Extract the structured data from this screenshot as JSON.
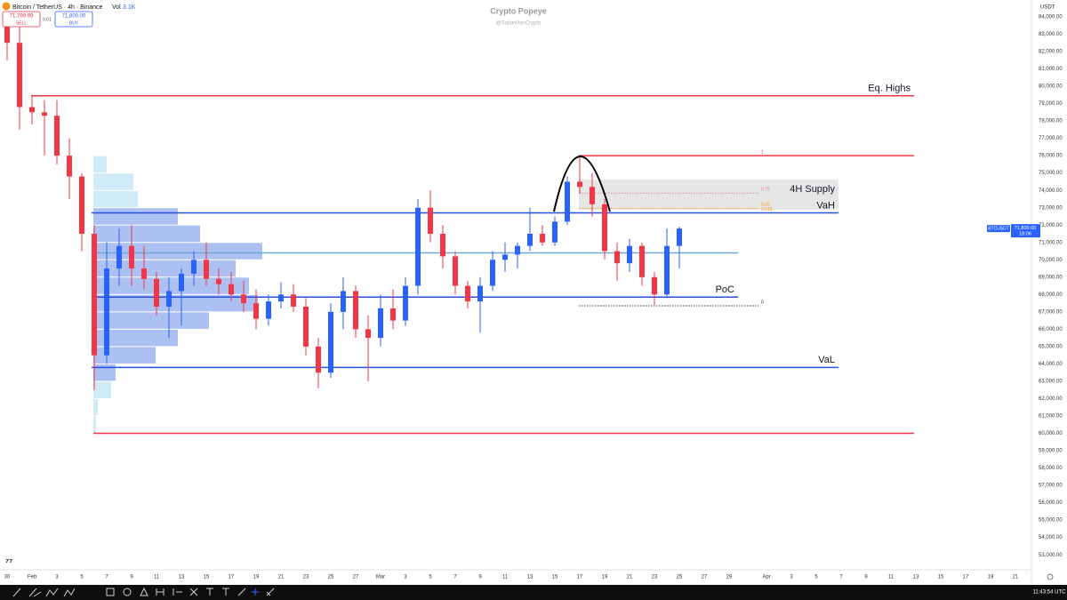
{
  "header": {
    "symbol": "Bitcoin / TetherUS · 4h · Binance",
    "vol_label": "Vol",
    "vol": "3.1K",
    "sell_price": "71,799.99",
    "sell": "SELL",
    "spread": "0.01",
    "buy_price": "71,800.00",
    "buy": "BUY"
  },
  "watermark": {
    "title": "Crypto Popeye",
    "handle": "@SailorManCrypto"
  },
  "price_axis_currency": "USDT",
  "clock": "11:43:54 UTC",
  "chart_data": {
    "type": "candlestick",
    "categories": [
      "30",
      null,
      "Feb",
      null,
      "3",
      null,
      "5",
      null,
      "7",
      null,
      "9",
      null,
      "11",
      null,
      "13",
      null,
      "15",
      null,
      "17",
      null,
      "19",
      null,
      "21",
      null,
      "23",
      null,
      "25",
      null,
      "27",
      null,
      "Mar",
      null,
      "3",
      null,
      "5",
      null,
      "7",
      null,
      "9",
      null,
      "11",
      null,
      "13",
      null,
      "15",
      null,
      "17",
      null,
      "19",
      null,
      "21",
      null,
      "23",
      null,
      "25",
      null,
      "27",
      null,
      "29",
      null,
      null,
      "Apr",
      null,
      "3",
      null,
      "5",
      null,
      "7",
      null,
      "9",
      null,
      "11",
      null,
      "13",
      null,
      "15",
      null,
      "17",
      null,
      "19",
      null,
      "21"
    ],
    "open": [
      83500,
      82500,
      78800,
      78500,
      78300,
      76000,
      74800,
      71500,
      64500,
      69500,
      70800,
      69500,
      68900,
      67300,
      68200,
      69200,
      70000,
      68900,
      68600,
      68000,
      67500,
      66600,
      67600,
      68000,
      67300,
      65000,
      63500,
      67000,
      68200,
      66000,
      65500,
      67200,
      66500,
      68500,
      73000,
      71500,
      70200,
      68500,
      67600,
      68500,
      70000,
      70300,
      70800,
      71500,
      71000,
      72200,
      74500,
      74200,
      73200,
      70500,
      69800,
      70800,
      69000,
      68000,
      70800,
      null,
      null,
      null,
      null,
      null,
      null,
      null,
      null,
      null,
      null,
      null,
      null,
      null,
      null,
      null,
      null,
      null,
      null,
      null,
      null,
      null,
      null,
      null,
      null,
      null,
      null,
      null
    ],
    "high": [
      84200,
      83500,
      79500,
      79200,
      79200,
      77000,
      75000,
      72000,
      71000,
      71800,
      72000,
      70800,
      69300,
      69000,
      69500,
      70500,
      71000,
      69500,
      69300,
      68800,
      68300,
      68000,
      68700,
      68600,
      67800,
      65500,
      67500,
      69000,
      68500,
      66800,
      68000,
      68300,
      69000,
      73500,
      74000,
      72000,
      70500,
      68800,
      69000,
      70500,
      71000,
      71000,
      73000,
      72000,
      72500,
      74800,
      76000,
      75000,
      73500,
      71000,
      71200,
      71000,
      69300,
      71800,
      71900,
      null,
      null,
      null,
      null,
      null,
      null,
      null,
      null,
      null,
      null,
      null,
      null,
      null,
      null,
      null,
      null,
      null,
      null,
      null,
      null,
      null,
      null,
      null,
      null,
      null,
      null,
      null
    ],
    "low": [
      81500,
      77500,
      77800,
      76000,
      75500,
      73500,
      70500,
      62500,
      64000,
      68500,
      68500,
      68300,
      66800,
      65500,
      66200,
      68500,
      68500,
      68000,
      67600,
      67000,
      66000,
      66200,
      67200,
      67000,
      64500,
      62600,
      63200,
      66000,
      65500,
      63000,
      65000,
      66000,
      66200,
      68000,
      71000,
      69500,
      68000,
      67200,
      65800,
      68200,
      69300,
      69500,
      70500,
      70800,
      70800,
      72000,
      73800,
      72500,
      70000,
      68800,
      69300,
      68500,
      67400,
      67800,
      69500,
      null,
      null,
      null,
      null,
      null,
      null,
      null,
      null,
      null,
      null,
      null,
      null,
      null,
      null,
      null,
      null,
      null,
      null,
      null,
      null,
      null,
      null,
      null,
      null,
      null,
      null,
      null
    ],
    "close": [
      82500,
      78800,
      78500,
      78300,
      76000,
      74800,
      71500,
      64500,
      69500,
      70800,
      69500,
      68900,
      67300,
      68200,
      69200,
      70000,
      68900,
      68600,
      68000,
      67500,
      66600,
      67600,
      68000,
      67300,
      65000,
      63500,
      67000,
      68200,
      66000,
      65500,
      67200,
      66500,
      68500,
      73000,
      71500,
      70200,
      68500,
      67600,
      68500,
      70000,
      70300,
      70800,
      71500,
      71000,
      72200,
      74500,
      74200,
      73200,
      70500,
      69800,
      70800,
      69000,
      68000,
      70800,
      71800,
      null,
      null,
      null,
      null,
      null,
      null,
      null,
      null,
      null,
      null,
      null,
      null,
      null,
      null,
      null,
      null,
      null,
      null,
      null,
      null,
      null,
      null,
      null,
      null,
      null,
      null,
      null
    ],
    "up_color": "#2962ff",
    "down_color": "#f23645",
    "ylim": [
      52190,
      84970
    ],
    "yticks": [
      {
        "value": 53000,
        "label": "53,000.00"
      },
      {
        "value": 54000,
        "label": "54,000.00"
      },
      {
        "value": 55000,
        "label": "55,000.00"
      },
      {
        "value": 56000,
        "label": "56,000.00"
      },
      {
        "value": 57000,
        "label": "57,000.00"
      },
      {
        "value": 58000,
        "label": "58,000.00"
      },
      {
        "value": 59000,
        "label": "59,000.00"
      },
      {
        "value": 60000,
        "label": "60,000.00"
      },
      {
        "value": 61000,
        "label": "61,000.00"
      },
      {
        "value": 62000,
        "label": "62,000.00"
      },
      {
        "value": 63000,
        "label": "63,000.00"
      },
      {
        "value": 64000,
        "label": "64,000.00"
      },
      {
        "value": 65000,
        "label": "65,000.00"
      },
      {
        "value": 66000,
        "label": "66,000.00"
      },
      {
        "value": 67000,
        "label": "67,000.00"
      },
      {
        "value": 68000,
        "label": "68,000.00"
      },
      {
        "value": 69000,
        "label": "69,000.00"
      },
      {
        "value": 70000,
        "label": "70,000.00"
      },
      {
        "value": 71000,
        "label": "71,000.00"
      },
      {
        "value": 72000,
        "label": "72,000.00"
      },
      {
        "value": 73000,
        "label": "73,000.00"
      },
      {
        "value": 74000,
        "label": "74,000.00"
      },
      {
        "value": 75000,
        "label": "75,000.00"
      },
      {
        "value": 76000,
        "label": "76,000.00"
      },
      {
        "value": 77000,
        "label": "77,000.00"
      },
      {
        "value": 78000,
        "label": "78,000.00"
      },
      {
        "value": 79000,
        "label": "79,000.00"
      },
      {
        "value": 80000,
        "label": "80,000.00"
      },
      {
        "value": 81000,
        "label": "81,000.00"
      },
      {
        "value": 82000,
        "label": "82,000.00"
      },
      {
        "value": 83000,
        "label": "83,000.00"
      },
      {
        "value": 84000,
        "label": "84,000.00"
      }
    ],
    "volume_profile": {
      "bins": [
        60000,
        61000,
        62000,
        63000,
        64000,
        65000,
        66000,
        67000,
        68000,
        69000,
        70000,
        71000,
        72000,
        73000,
        74000,
        75000,
        76000
      ],
      "values": [
        3,
        5,
        20,
        25,
        70,
        95,
        130,
        185,
        175,
        160,
        190,
        120,
        95,
        50,
        45,
        15
      ],
      "color": "#9db5ee",
      "outside_color": "#c6e8f5"
    },
    "levels": [
      {
        "name": "Eq. Highs",
        "value": 79450,
        "color": "#f23645"
      },
      {
        "value": 76000,
        "color": "#f23645"
      },
      {
        "value": 60000,
        "color": "#f23645"
      },
      {
        "name": "VaH",
        "value": 72700,
        "color": "#2451e0"
      },
      {
        "value": 70400,
        "color": "#6fa8dc"
      },
      {
        "name": "PoC",
        "value": 67850,
        "color": "#2451e0"
      },
      {
        "name": "VaL",
        "value": 63800,
        "color": "#2451e0"
      }
    ],
    "supply_zone": {
      "label": "4H Supply",
      "top": 74630,
      "bottom": 72880,
      "color": "#e3e3e3"
    },
    "fib": [
      {
        "value": 76000,
        "label": "1",
        "color": "#e0303a"
      },
      {
        "value": 73840,
        "label": "0.75",
        "color": "#e08080"
      },
      {
        "value": 72970,
        "label": "0.65",
        "color": "#f39c12"
      },
      {
        "value": 72700,
        "label": "0.618",
        "color": "#f39c12"
      },
      {
        "value": 67350,
        "label": "0",
        "color": "#222222"
      }
    ],
    "last_price": {
      "symbol": "BTCUSDT",
      "price": 71800,
      "price_label": "71,800.00",
      "countdown": "18:06",
      "color": "#2962ff"
    }
  }
}
